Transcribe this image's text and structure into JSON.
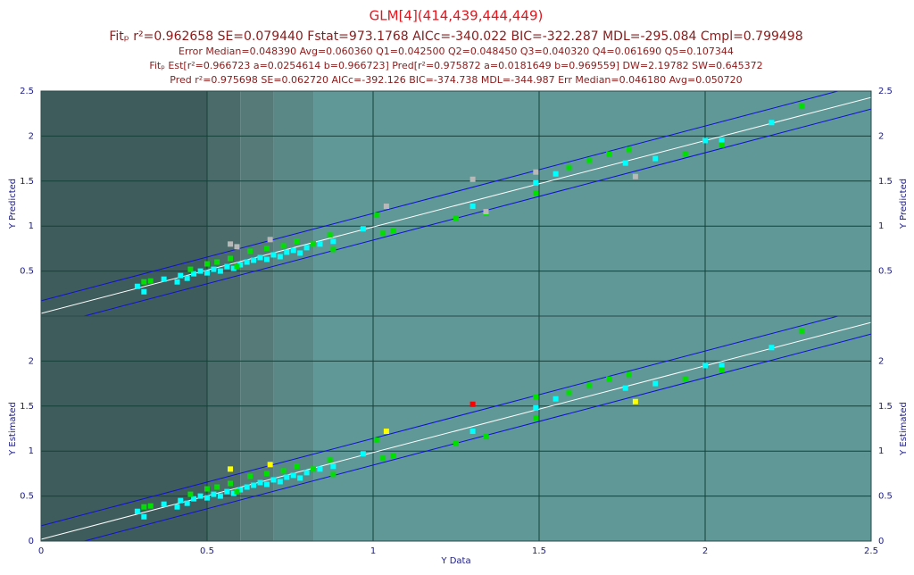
{
  "chart_data": [
    {
      "type": "scatter",
      "title": "GLM[4](414,439,444,449)",
      "subtitles": [
        "Fitₚ r²=0.962658 SE=0.079440 Fstat=973.1768 AICc=-340.022 BIC=-322.287 MDL=-295.084 Cmpl=0.799498",
        "Error Median=0.048390 Avg=0.060360 Q1=0.042500 Q2=0.048450 Q3=0.040320 Q4=0.061690 Q5=0.107344",
        "Fitₚ Est[r²=0.966723 a=0.0254614 b=0.966723] Pred[r²=0.975872 a=0.0181649 b=0.969559] DW=2.19782 SW=0.645372",
        "Pred r²=0.975698 SE=0.062720 AICc=-392.126 BIC=-374.738 MDL=-344.987 Err Median=0.046180 Avg=0.050720"
      ],
      "ylabel": "Y Predicted",
      "xlim": [
        0,
        2.5
      ],
      "xticks": [
        0,
        0.5,
        1,
        1.5,
        2,
        2.5
      ],
      "ylim": [
        0,
        2.5
      ],
      "yticks": [
        0.5,
        1,
        1.5,
        2,
        2.5
      ],
      "grid": true,
      "bands": [
        {
          "x": [
            0,
            0.5
          ],
          "color": "#3e5c5b"
        },
        {
          "x": [
            0.5,
            0.6
          ],
          "color": "#4b6b6a"
        },
        {
          "x": [
            0.6,
            0.7
          ],
          "color": "#557a78"
        },
        {
          "x": [
            0.7,
            0.82
          ],
          "color": "#5a8886"
        },
        {
          "x": [
            0.82,
            2.5
          ],
          "color": "#5f9896"
        }
      ],
      "lines": [
        {
          "color": "#ffffff",
          "x": [
            0,
            2.5
          ],
          "values": [
            0.03,
            2.43
          ]
        },
        {
          "color": "#1010d8",
          "x": [
            0,
            2.4
          ],
          "values": [
            0.17,
            2.5
          ]
        },
        {
          "color": "#1010d8",
          "x": [
            0.13,
            2.5
          ],
          "values": [
            0,
            2.3
          ]
        }
      ],
      "series": [
        {
          "color": "#00ffff",
          "x": [
            0.29,
            0.31,
            0.37,
            0.41,
            0.42,
            0.44,
            0.46,
            0.48,
            0.5,
            0.52,
            0.54,
            0.56,
            0.58,
            0.6,
            0.62,
            0.64,
            0.66,
            0.68,
            0.7,
            0.72,
            0.74,
            0.76,
            0.78,
            0.8,
            0.84,
            0.88,
            0.97,
            1.3,
            1.49,
            1.55,
            1.76,
            1.85,
            2.0,
            2.05,
            2.2
          ],
          "values": [
            0.33,
            0.27,
            0.41,
            0.38,
            0.45,
            0.42,
            0.47,
            0.5,
            0.48,
            0.52,
            0.5,
            0.55,
            0.53,
            0.57,
            0.6,
            0.62,
            0.65,
            0.63,
            0.68,
            0.66,
            0.71,
            0.73,
            0.7,
            0.76,
            0.8,
            0.83,
            0.97,
            1.22,
            1.48,
            1.58,
            1.7,
            1.75,
            1.95,
            1.95,
            2.15
          ]
        },
        {
          "color": "#00e000",
          "x": [
            0.31,
            0.33,
            0.45,
            0.5,
            0.53,
            0.57,
            0.59,
            0.63,
            0.68,
            0.73,
            0.77,
            0.82,
            0.87,
            0.88,
            1.01,
            1.03,
            1.06,
            1.25,
            1.34,
            1.49,
            1.59,
            1.65,
            1.71,
            1.77,
            1.94,
            2.05,
            2.29
          ],
          "values": [
            0.38,
            0.39,
            0.52,
            0.58,
            0.6,
            0.64,
            0.55,
            0.72,
            0.75,
            0.78,
            0.83,
            0.8,
            0.9,
            0.74,
            1.12,
            0.92,
            0.95,
            1.09,
            1.15,
            1.37,
            1.65,
            1.73,
            1.8,
            1.85,
            1.8,
            1.9,
            2.33
          ]
        },
        {
          "color": "#b8b8b8",
          "x": [
            0.57,
            0.59,
            0.69,
            1.04,
            1.3,
            1.34,
            1.49,
            1.79
          ],
          "values": [
            0.8,
            0.77,
            0.85,
            1.22,
            1.52,
            1.16,
            1.6,
            1.55
          ]
        }
      ]
    },
    {
      "type": "scatter",
      "ylabel": "Y Estimated",
      "xlabel": "Y Data",
      "xlim": [
        0,
        2.5
      ],
      "xticks": [
        0,
        0.5,
        1,
        1.5,
        2,
        2.5
      ],
      "ylim": [
        0,
        2.5
      ],
      "yticks": [
        0,
        0.5,
        1,
        1.5,
        2
      ],
      "grid": true,
      "bands": [
        {
          "x": [
            0,
            0.5
          ],
          "color": "#3e5c5b"
        },
        {
          "x": [
            0.5,
            0.6
          ],
          "color": "#4b6b6a"
        },
        {
          "x": [
            0.6,
            0.7
          ],
          "color": "#557a78"
        },
        {
          "x": [
            0.7,
            0.82
          ],
          "color": "#5a8886"
        },
        {
          "x": [
            0.82,
            2.5
          ],
          "color": "#5f9896"
        }
      ],
      "lines": [
        {
          "color": "#ffffff",
          "x": [
            0,
            2.5
          ],
          "values": [
            0.02,
            2.43
          ]
        },
        {
          "color": "#1010d8",
          "x": [
            0,
            2.4
          ],
          "values": [
            0.17,
            2.5
          ]
        },
        {
          "color": "#1010d8",
          "x": [
            0.13,
            2.5
          ],
          "values": [
            0,
            2.3
          ]
        }
      ],
      "series": [
        {
          "color": "#00ffff",
          "x": [
            0.29,
            0.31,
            0.37,
            0.41,
            0.42,
            0.44,
            0.46,
            0.48,
            0.5,
            0.52,
            0.54,
            0.56,
            0.58,
            0.6,
            0.62,
            0.64,
            0.66,
            0.68,
            0.7,
            0.72,
            0.74,
            0.76,
            0.78,
            0.8,
            0.84,
            0.88,
            0.97,
            1.3,
            1.49,
            1.55,
            1.76,
            1.85,
            2.0,
            2.05,
            2.2
          ],
          "values": [
            0.33,
            0.27,
            0.41,
            0.38,
            0.45,
            0.42,
            0.47,
            0.5,
            0.48,
            0.52,
            0.5,
            0.55,
            0.53,
            0.57,
            0.6,
            0.62,
            0.65,
            0.63,
            0.68,
            0.66,
            0.71,
            0.73,
            0.7,
            0.76,
            0.8,
            0.83,
            0.97,
            1.22,
            1.48,
            1.58,
            1.7,
            1.75,
            1.95,
            1.95,
            2.15
          ]
        },
        {
          "color": "#00e000",
          "x": [
            0.31,
            0.33,
            0.45,
            0.5,
            0.53,
            0.57,
            0.59,
            0.63,
            0.68,
            0.73,
            0.77,
            0.82,
            0.87,
            0.88,
            1.01,
            1.03,
            1.06,
            1.25,
            1.34,
            1.49,
            1.49,
            1.59,
            1.65,
            1.71,
            1.77,
            1.94,
            2.05,
            2.29
          ],
          "values": [
            0.38,
            0.39,
            0.52,
            0.58,
            0.6,
            0.64,
            0.55,
            0.72,
            0.75,
            0.78,
            0.83,
            0.8,
            0.9,
            0.74,
            1.12,
            0.92,
            0.95,
            1.09,
            1.16,
            1.37,
            1.6,
            1.65,
            1.73,
            1.8,
            1.85,
            1.8,
            1.9,
            2.33
          ]
        },
        {
          "color": "#ffff00",
          "x": [
            0.57,
            0.69,
            1.04,
            1.79
          ],
          "values": [
            0.8,
            0.85,
            1.22,
            1.55
          ]
        },
        {
          "color": "#ff0000",
          "x": [
            1.3
          ],
          "values": [
            1.52
          ]
        }
      ]
    }
  ]
}
